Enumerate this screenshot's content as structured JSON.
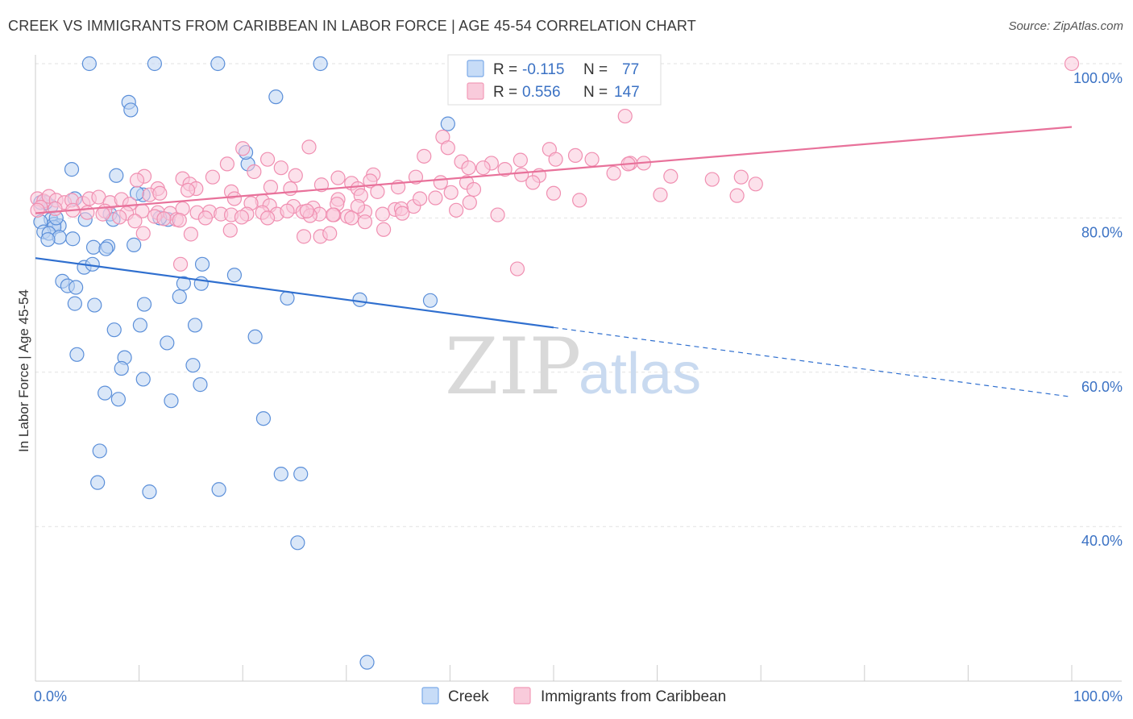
{
  "title": "CREEK VS IMMIGRANTS FROM CARIBBEAN IN LABOR FORCE | AGE 45-54 CORRELATION CHART",
  "source": "Source: ZipAtlas.com",
  "watermark": {
    "zip": "ZIP",
    "atlas": "atlas"
  },
  "legend_top": [
    {
      "r_label": "R =",
      "r_value": "-0.115",
      "n_label": "N =",
      "n_value": "77",
      "color": "#7baae8",
      "fill": "#c7dcf7"
    },
    {
      "r_label": "R =",
      "r_value": "0.556",
      "n_label": "N =",
      "n_value": "147",
      "color": "#f29bb8",
      "fill": "#f9cbdb"
    }
  ],
  "chart_data": {
    "type": "scatter",
    "title": "CREEK VS IMMIGRANTS FROM CARIBBEAN IN LABOR FORCE | AGE 45-54 CORRELATION CHART",
    "xlabel": "",
    "ylabel": "In Labor Force | Age 45-54",
    "xlim": [
      0,
      100
    ],
    "ylim": [
      22,
      102
    ],
    "x_tick_labels": [
      "0.0%",
      "100.0%"
    ],
    "y_ticks": [
      40,
      60,
      80,
      100
    ],
    "y_tick_labels": [
      "40.0%",
      "60.0%",
      "80.0%",
      "100.0%"
    ],
    "grid": "horizontal dashed",
    "legend_placement": "top-center",
    "series": [
      {
        "name": "Creek",
        "color": "#5b8fd9",
        "fill": "#bcd4f3",
        "trend": {
          "x0": 0,
          "y0": 74.8,
          "x1": 50,
          "y1": 65.8,
          "dashed_to_x": 100,
          "dashed_to_y": 56.8,
          "color": "#2f6fcf"
        },
        "points": [
          [
            5.2,
            100
          ],
          [
            11.5,
            100
          ],
          [
            17.6,
            100
          ],
          [
            27.5,
            100
          ],
          [
            9.0,
            95
          ],
          [
            9.2,
            94
          ],
          [
            23.2,
            95.7
          ],
          [
            39.8,
            92.2
          ],
          [
            20.5,
            87
          ],
          [
            20.3,
            88.5
          ],
          [
            3.5,
            86.3
          ],
          [
            7.8,
            85.5
          ],
          [
            10.4,
            83
          ],
          [
            3.8,
            82.5
          ],
          [
            0.5,
            82
          ],
          [
            1.5,
            81.5
          ],
          [
            7.2,
            80.5
          ],
          [
            1.5,
            79.8
          ],
          [
            0.5,
            79.5
          ],
          [
            1.8,
            79.2
          ],
          [
            2.3,
            79
          ],
          [
            1.8,
            78.8
          ],
          [
            4.8,
            79.8
          ],
          [
            7.5,
            79.8
          ],
          [
            12.8,
            79.8
          ],
          [
            0.8,
            78.2
          ],
          [
            1.3,
            78
          ],
          [
            2.3,
            77.5
          ],
          [
            3.6,
            77.3
          ],
          [
            1.2,
            77.2
          ],
          [
            5.6,
            76.2
          ],
          [
            7.0,
            76.3
          ],
          [
            9.5,
            76.5
          ],
          [
            6.8,
            76
          ],
          [
            16.1,
            74
          ],
          [
            4.7,
            73.6
          ],
          [
            5.5,
            74
          ],
          [
            19.2,
            72.6
          ],
          [
            2.6,
            71.8
          ],
          [
            3.1,
            71.2
          ],
          [
            3.9,
            71
          ],
          [
            14.3,
            71.5
          ],
          [
            16.0,
            71.5
          ],
          [
            13.9,
            69.8
          ],
          [
            10.5,
            68.8
          ],
          [
            3.8,
            68.9
          ],
          [
            5.7,
            68.7
          ],
          [
            24.3,
            69.6
          ],
          [
            31.3,
            69.4
          ],
          [
            38.1,
            69.3
          ],
          [
            7.6,
            65.5
          ],
          [
            10.1,
            66.1
          ],
          [
            15.4,
            66.1
          ],
          [
            21.2,
            64.6
          ],
          [
            12.7,
            63.8
          ],
          [
            4.0,
            62.3
          ],
          [
            8.6,
            61.9
          ],
          [
            8.3,
            60.5
          ],
          [
            15.2,
            60.9
          ],
          [
            10.4,
            59.1
          ],
          [
            15.9,
            58.4
          ],
          [
            6.7,
            57.3
          ],
          [
            8.0,
            56.5
          ],
          [
            13.1,
            56.3
          ],
          [
            22.0,
            54
          ],
          [
            6.2,
            49.8
          ],
          [
            23.7,
            46.8
          ],
          [
            25.6,
            46.8
          ],
          [
            6.0,
            45.7
          ],
          [
            11.0,
            44.5
          ],
          [
            17.7,
            44.8
          ],
          [
            25.3,
            37.9
          ],
          [
            32.0,
            22.4
          ],
          [
            1.0,
            82
          ],
          [
            2.0,
            80
          ],
          [
            12.0,
            80
          ],
          [
            9.8,
            83.2
          ]
        ]
      },
      {
        "name": "Immigrants from Caribbean",
        "color": "#f08fb1",
        "fill": "#f9c9da",
        "trend": {
          "x0": 0,
          "y0": 80.6,
          "x1": 100,
          "y1": 91.8,
          "color": "#e8719a"
        },
        "points": [
          [
            100,
            100
          ],
          [
            56.9,
            93.2
          ],
          [
            20.0,
            89.0
          ],
          [
            26.4,
            89.2
          ],
          [
            49.6,
            88.9
          ],
          [
            52.1,
            88.1
          ],
          [
            39.3,
            90.5
          ],
          [
            39.8,
            89.1
          ],
          [
            37.5,
            88.0
          ],
          [
            41.1,
            87.3
          ],
          [
            44.0,
            87.1
          ],
          [
            46.8,
            87.5
          ],
          [
            50.2,
            87.6
          ],
          [
            43.2,
            86.5
          ],
          [
            45.3,
            86.3
          ],
          [
            21.1,
            86.0
          ],
          [
            23.7,
            86.5
          ],
          [
            22.4,
            87.6
          ],
          [
            18.5,
            87.0
          ],
          [
            17.1,
            85.3
          ],
          [
            14.2,
            85.1
          ],
          [
            10.5,
            85.4
          ],
          [
            9.8,
            84.9
          ],
          [
            14.9,
            84.4
          ],
          [
            15.5,
            83.8
          ],
          [
            11.8,
            83.8
          ],
          [
            22.7,
            84.0
          ],
          [
            25.1,
            85.5
          ],
          [
            27.6,
            84.3
          ],
          [
            29.2,
            85.2
          ],
          [
            30.5,
            84.5
          ],
          [
            32.6,
            85.6
          ],
          [
            32.3,
            84.8
          ],
          [
            31.1,
            83.8
          ],
          [
            33.0,
            83.4
          ],
          [
            35.0,
            84.0
          ],
          [
            36.7,
            85.3
          ],
          [
            39.1,
            84.6
          ],
          [
            41.6,
            84.6
          ],
          [
            42.3,
            83.7
          ],
          [
            46.9,
            85.6
          ],
          [
            48.6,
            85.5
          ],
          [
            50.0,
            83.2
          ],
          [
            57.4,
            87.1
          ],
          [
            58.7,
            87.1
          ],
          [
            61.3,
            85.4
          ],
          [
            65.3,
            85.0
          ],
          [
            68.1,
            85.3
          ],
          [
            69.5,
            84.4
          ],
          [
            67.7,
            82.9
          ],
          [
            11.0,
            83.0
          ],
          [
            12.0,
            83.2
          ],
          [
            14.7,
            83.6
          ],
          [
            18.9,
            83.4
          ],
          [
            21.9,
            82.2
          ],
          [
            22.6,
            81.6
          ],
          [
            20.8,
            81.9
          ],
          [
            19.2,
            82.5
          ],
          [
            24.9,
            81.5
          ],
          [
            26.8,
            81.3
          ],
          [
            29.2,
            82.4
          ],
          [
            29.1,
            81.8
          ],
          [
            31.4,
            82.9
          ],
          [
            34.7,
            81.1
          ],
          [
            36.5,
            81.5
          ],
          [
            37.1,
            82.5
          ],
          [
            38.6,
            82.6
          ],
          [
            40.1,
            83.3
          ],
          [
            41.9,
            82.0
          ],
          [
            40.6,
            81.0
          ],
          [
            0.2,
            82.5
          ],
          [
            0.8,
            82.2
          ],
          [
            1.3,
            82.8
          ],
          [
            2.0,
            82.3
          ],
          [
            2.8,
            82.0
          ],
          [
            3.5,
            82.3
          ],
          [
            4.6,
            81.9
          ],
          [
            5.2,
            82.5
          ],
          [
            6.1,
            82.7
          ],
          [
            7.2,
            82.0
          ],
          [
            8.3,
            82.4
          ],
          [
            9.1,
            81.8
          ],
          [
            0.5,
            81.4
          ],
          [
            1.9,
            81.2
          ],
          [
            3.6,
            81.0
          ],
          [
            5.0,
            80.7
          ],
          [
            6.7,
            80.9
          ],
          [
            8.8,
            80.6
          ],
          [
            10.3,
            80.9
          ],
          [
            11.8,
            80.7
          ],
          [
            13.0,
            80.6
          ],
          [
            14.2,
            81.2
          ],
          [
            15.6,
            80.7
          ],
          [
            16.8,
            80.8
          ],
          [
            17.9,
            80.5
          ],
          [
            18.9,
            80.4
          ],
          [
            20.4,
            80.5
          ],
          [
            21.9,
            80.7
          ],
          [
            23.3,
            80.5
          ],
          [
            24.3,
            80.9
          ],
          [
            25.8,
            80.8
          ],
          [
            27.4,
            80.5
          ],
          [
            28.8,
            80.4
          ],
          [
            30.1,
            80.2
          ],
          [
            31.8,
            80.8
          ],
          [
            33.5,
            80.5
          ],
          [
            35.3,
            81.2
          ],
          [
            0.2,
            81.0
          ],
          [
            6.5,
            80.5
          ],
          [
            11.5,
            80.2
          ],
          [
            16.4,
            80.0
          ],
          [
            13.6,
            79.8
          ],
          [
            12.4,
            79.9
          ],
          [
            8.1,
            80.1
          ],
          [
            9.6,
            79.6
          ],
          [
            13.9,
            79.7
          ],
          [
            19.9,
            80.1
          ],
          [
            22.4,
            80.0
          ],
          [
            26.5,
            80.3
          ],
          [
            28.7,
            80.4
          ],
          [
            30.5,
            80.0
          ],
          [
            31.8,
            79.5
          ],
          [
            35.4,
            80.6
          ],
          [
            10.4,
            78.0
          ],
          [
            15.0,
            77.9
          ],
          [
            18.8,
            78.4
          ],
          [
            25.9,
            77.6
          ],
          [
            27.5,
            77.6
          ],
          [
            28.4,
            78.0
          ],
          [
            33.6,
            78.5
          ],
          [
            14.0,
            74.0
          ],
          [
            46.5,
            73.4
          ],
          [
            57.2,
            87.0
          ],
          [
            53.7,
            87.6
          ],
          [
            52.5,
            82.3
          ],
          [
            55.8,
            85.8
          ],
          [
            41.8,
            86.5
          ],
          [
            44.6,
            80.4
          ],
          [
            31.1,
            81.5
          ],
          [
            48.0,
            84.6
          ],
          [
            24.6,
            83.8
          ],
          [
            26.2,
            80.9
          ],
          [
            60.3,
            83.0
          ]
        ]
      }
    ]
  },
  "bottom_legend": [
    {
      "label": "Creek",
      "color": "#7baae8",
      "fill": "#c7dcf7"
    },
    {
      "label": "Immigrants from Caribbean",
      "color": "#f29bb8",
      "fill": "#f9cbdb"
    }
  ]
}
